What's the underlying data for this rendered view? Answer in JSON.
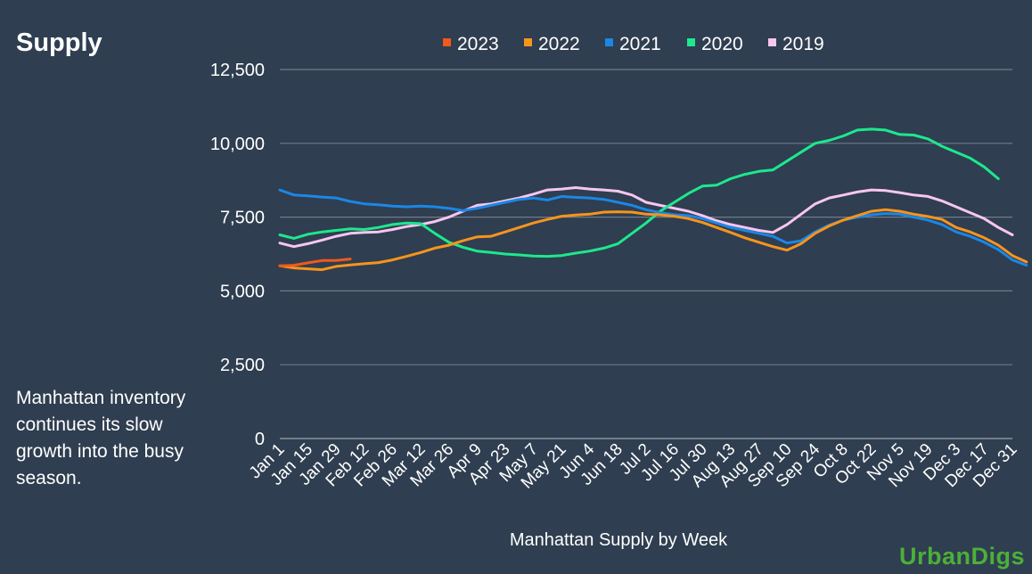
{
  "title": "Supply",
  "caption": "Manhattan inventory continues its slow growth into the busy season.",
  "logo": "UrbanDigs",
  "chart_data": {
    "type": "line",
    "title": "",
    "xlabel": "Manhattan Supply by Week",
    "ylabel": "",
    "ylim": [
      0,
      12500
    ],
    "yticks": [
      0,
      2500,
      5000,
      7500,
      10000,
      12500
    ],
    "ytick_labels": [
      "0",
      "2,500",
      "5,000",
      "7,500",
      "10,000",
      "12,500"
    ],
    "grid": true,
    "legend": "top",
    "x_tick_labels": [
      "Jan 1",
      "Jan 15",
      "Jan 29",
      "Feb 12",
      "Feb 26",
      "Mar 12",
      "Mar 26",
      "Apr 9",
      "Apr 23",
      "May 7",
      "May 21",
      "Jun 4",
      "Jun 18",
      "Jul 2",
      "Jul 16",
      "Jul 30",
      "Aug 13",
      "Aug 27",
      "Sep 10",
      "Sep 24",
      "Oct 8",
      "Oct 22",
      "Nov 5",
      "Nov 19",
      "Dec 3",
      "Dec 17",
      "Dec 31"
    ],
    "series": [
      {
        "name": "2023",
        "color": "#f05a1a",
        "values": [
          5850,
          5870,
          5950,
          6030,
          6030,
          6080
        ]
      },
      {
        "name": "2022",
        "color": "#f7941d",
        "values": [
          5850,
          5780,
          5750,
          5720,
          5830,
          5880,
          5920,
          5960,
          6050,
          6170,
          6300,
          6450,
          6550,
          6700,
          6830,
          6850,
          7000,
          7150,
          7300,
          7420,
          7530,
          7570,
          7600,
          7670,
          7680,
          7670,
          7600,
          7580,
          7530,
          7450,
          7320,
          7150,
          6980,
          6800,
          6650,
          6500,
          6380,
          6600,
          6950,
          7200,
          7400,
          7550,
          7700,
          7750,
          7700,
          7600,
          7520,
          7420,
          7150,
          7000,
          6800,
          6550,
          6200,
          5980
        ]
      },
      {
        "name": "2021",
        "color": "#1b87e5",
        "values": [
          8420,
          8250,
          8220,
          8180,
          8150,
          8030,
          7950,
          7920,
          7870,
          7850,
          7870,
          7850,
          7800,
          7720,
          7800,
          7900,
          8000,
          8100,
          8150,
          8080,
          8200,
          8170,
          8150,
          8100,
          8000,
          7900,
          7750,
          7650,
          7580,
          7550,
          7450,
          7300,
          7150,
          7050,
          6950,
          6850,
          6620,
          6700,
          7000,
          7230,
          7400,
          7500,
          7580,
          7620,
          7600,
          7500,
          7400,
          7250,
          7000,
          6850,
          6650,
          6400,
          6050,
          5870
        ]
      },
      {
        "name": "2020",
        "color": "#1de88e",
        "values": [
          6900,
          6780,
          6920,
          7000,
          7050,
          7100,
          7080,
          7150,
          7250,
          7300,
          7280,
          6950,
          6650,
          6480,
          6350,
          6300,
          6250,
          6220,
          6180,
          6170,
          6200,
          6280,
          6350,
          6450,
          6600,
          6950,
          7300,
          7700,
          8000,
          8300,
          8550,
          8580,
          8800,
          8950,
          9050,
          9100,
          9400,
          9700,
          10000,
          10100,
          10250,
          10450,
          10480,
          10450,
          10300,
          10280,
          10150,
          9900,
          9700,
          9500,
          9200,
          8800
        ]
      },
      {
        "name": "2019",
        "color": "#f7c6f0",
        "values": [
          6620,
          6500,
          6600,
          6720,
          6850,
          6950,
          6980,
          7000,
          7080,
          7180,
          7250,
          7350,
          7500,
          7700,
          7900,
          7950,
          8050,
          8150,
          8280,
          8420,
          8450,
          8500,
          8450,
          8420,
          8380,
          8250,
          8000,
          7900,
          7800,
          7700,
          7550,
          7380,
          7250,
          7150,
          7050,
          6980,
          7250,
          7600,
          7950,
          8150,
          8250,
          8350,
          8420,
          8400,
          8330,
          8250,
          8200,
          8050,
          7850,
          7650,
          7450,
          7150,
          6900
        ]
      }
    ]
  }
}
